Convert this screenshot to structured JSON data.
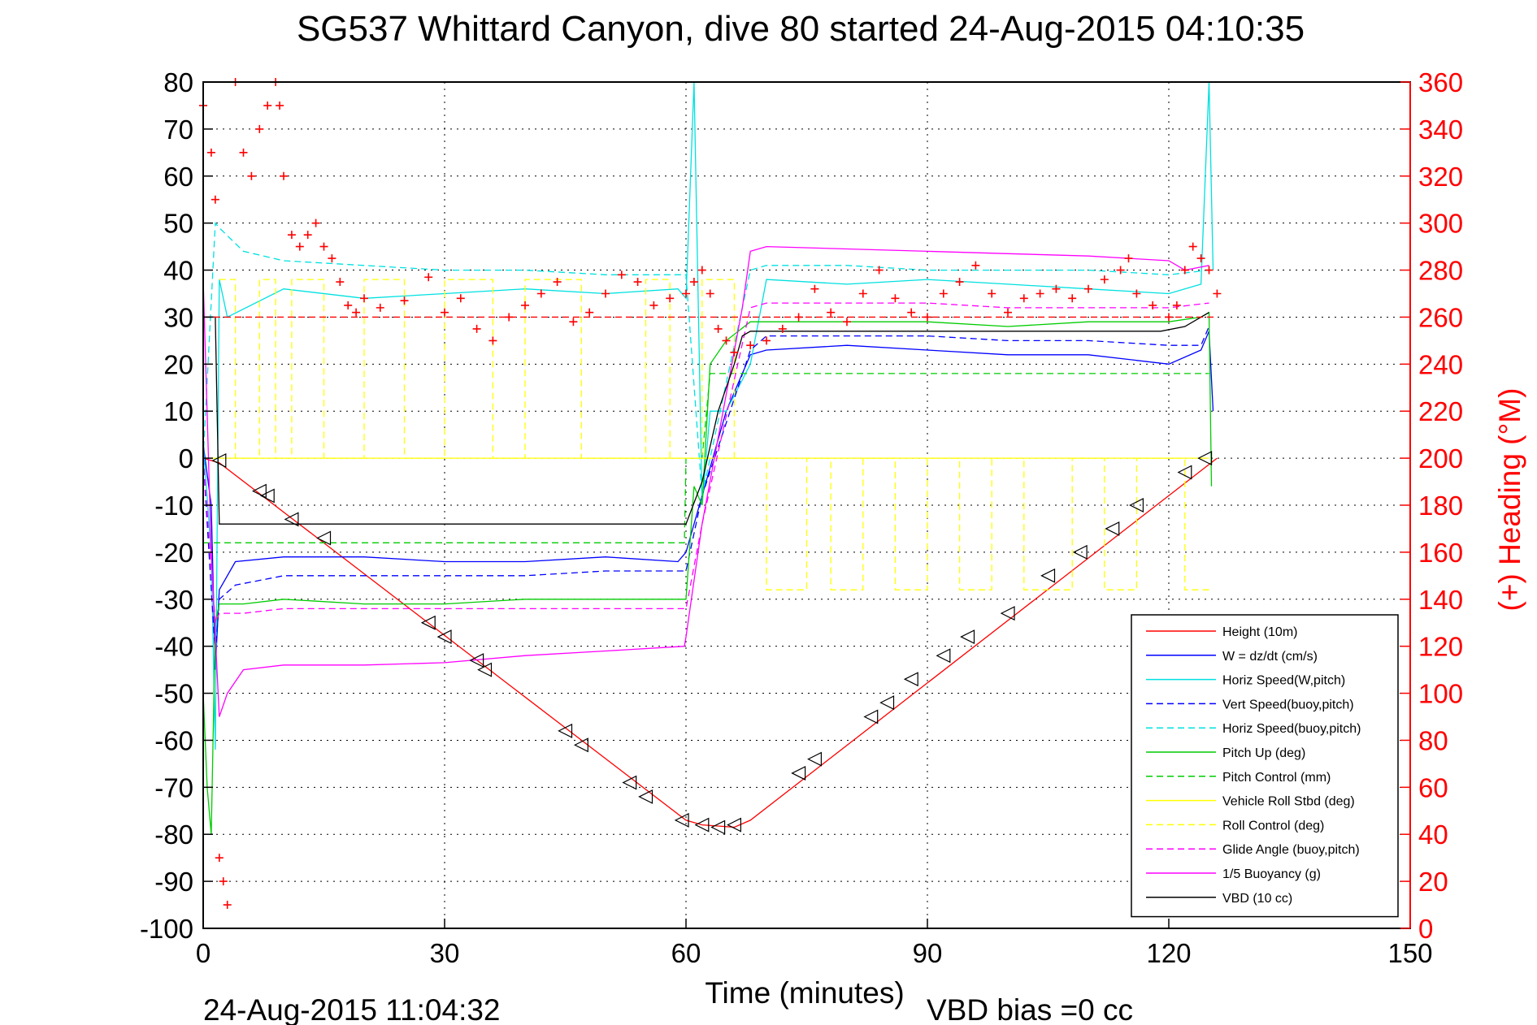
{
  "chart_data": {
    "type": "line",
    "title": "SG537 Whittard Canyon, dive 80 started 24-Aug-2015 04:10:35",
    "xlabel": "Time (minutes)",
    "ylabel": "",
    "y2label": "(+) Heading (°M)",
    "xlim": [
      0,
      150
    ],
    "ylim": [
      -100,
      80
    ],
    "y2lim": [
      0,
      360
    ],
    "xticks": [
      "0",
      "30",
      "60",
      "90",
      "120",
      "150"
    ],
    "yticks": [
      "80",
      "70",
      "60",
      "50",
      "40",
      "30",
      "20",
      "10",
      "0",
      "-10",
      "-20",
      "-30",
      "-40",
      "-50",
      "-60",
      "-70",
      "-80",
      "-90",
      "-100"
    ],
    "y2ticks": [
      "360",
      "340",
      "320",
      "300",
      "280",
      "260",
      "240",
      "220",
      "200",
      "180",
      "160",
      "140",
      "120",
      "100",
      "80",
      "60",
      "40",
      "20",
      "0"
    ],
    "grid": true,
    "legend_position": "bottom-right",
    "footer_left": "24-Aug-2015 11:04:32",
    "footer_right": "VBD bias =0 cc",
    "series": [
      {
        "name": "Height (10m)",
        "color": "#ff0000",
        "style": "solid",
        "x": [
          0,
          2,
          60,
          62,
          66,
          68,
          126
        ],
        "y": [
          0,
          -1,
          -77,
          -78,
          -78.5,
          -77,
          0
        ]
      },
      {
        "name": "W = dz/dt (cm/s)",
        "color": "#0000ff",
        "style": "solid",
        "x": [
          0,
          1,
          1.5,
          2,
          4,
          10,
          20,
          30,
          40,
          50,
          59,
          60,
          62,
          65,
          68,
          70,
          80,
          90,
          100,
          110,
          120,
          124,
          125,
          125.5
        ],
        "y": [
          3,
          -10,
          -45,
          -28,
          -22,
          -21,
          -21,
          -22,
          -22,
          -21,
          -22,
          -20,
          -8,
          10,
          22,
          23,
          24,
          23,
          22,
          22,
          20,
          23,
          27,
          10
        ]
      },
      {
        "name": "Horiz Speed(W,pitch)",
        "color": "#00e0e0",
        "style": "solid",
        "x": [
          0,
          1,
          1.5,
          2,
          3,
          10,
          20,
          30,
          40,
          50,
          59,
          60,
          61,
          62,
          63,
          65,
          68,
          70,
          80,
          90,
          100,
          110,
          120,
          124,
          125,
          125.5
        ],
        "y": [
          3,
          -20,
          -62,
          38,
          30,
          36,
          34,
          35,
          36,
          35,
          36,
          34,
          80,
          -10,
          10,
          10,
          20,
          38,
          37,
          38,
          37,
          36,
          35,
          37,
          80,
          40
        ]
      },
      {
        "name": "Vert Speed(buoy,pitch)",
        "color": "#0000ff",
        "style": "dashed",
        "x": [
          0,
          1.5,
          2,
          4,
          10,
          20,
          30,
          40,
          50,
          60,
          62,
          68,
          70,
          80,
          90,
          100,
          110,
          120,
          124,
          125
        ],
        "y": [
          0,
          -42,
          -30,
          -27,
          -25,
          -25,
          -25,
          -25,
          -24,
          -24,
          -8,
          23,
          26,
          26,
          26,
          25,
          25,
          24,
          24,
          28
        ]
      },
      {
        "name": "Horiz Speed(buoy,pitch)",
        "color": "#00e0e0",
        "style": "dashed",
        "x": [
          0,
          1.5,
          2,
          5,
          10,
          20,
          30,
          40,
          50,
          60,
          62,
          68,
          70,
          80,
          90,
          100,
          110,
          120,
          125
        ],
        "y": [
          0,
          50,
          49,
          44,
          42,
          41,
          40,
          40,
          39,
          39,
          -8,
          40,
          41,
          41,
          40,
          40,
          40,
          39,
          40
        ]
      },
      {
        "name": "Pitch Up (deg)",
        "color": "#00cc00",
        "style": "solid",
        "x": [
          0,
          0.5,
          1,
          1.5,
          2,
          5,
          10,
          20,
          30,
          40,
          50,
          60,
          61,
          62,
          63,
          65,
          68,
          70,
          80,
          90,
          100,
          110,
          120,
          124,
          125,
          125.3
        ],
        "y": [
          -50,
          -70,
          -80,
          -35,
          -31,
          -31,
          -30,
          -31,
          -31,
          -30,
          -30,
          -30,
          -6,
          -10,
          20,
          25,
          29,
          29,
          29,
          29,
          28,
          29,
          29,
          30,
          31,
          -6
        ]
      },
      {
        "name": "Pitch Control (mm)",
        "color": "#00cc00",
        "style": "dashed",
        "x": [
          0,
          2,
          59.8,
          60,
          62,
          63,
          125
        ],
        "y": [
          -18,
          -18,
          -18,
          0,
          0,
          18,
          18
        ]
      },
      {
        "name": "Vehicle Roll Stbd (deg)",
        "color": "#ffff00",
        "style": "solid",
        "x": [
          0,
          125
        ],
        "y": [
          0,
          0
        ]
      },
      {
        "name": "Roll Control (deg)",
        "color": "#ffff00",
        "style": "dashed",
        "x": [
          2,
          4,
          4,
          7,
          7,
          9,
          9,
          11,
          11,
          15,
          15,
          20,
          20,
          25,
          25,
          30,
          30,
          36,
          36,
          40,
          40,
          47,
          47,
          55,
          55,
          58,
          58,
          62,
          62,
          66,
          66,
          70,
          70,
          75,
          75,
          78,
          78,
          82,
          82,
          86,
          86,
          90,
          90,
          94,
          94,
          98,
          98,
          102,
          102,
          108,
          108,
          112,
          112,
          116,
          116,
          122,
          122,
          125
        ],
        "y": [
          38,
          38,
          0,
          0,
          38,
          38,
          0,
          0,
          38,
          38,
          0,
          0,
          38,
          38,
          0,
          0,
          38,
          38,
          0,
          0,
          38,
          38,
          0,
          0,
          38,
          38,
          0,
          0,
          38,
          38,
          0,
          0,
          -28,
          -28,
          0,
          0,
          -28,
          -28,
          0,
          0,
          -28,
          -28,
          0,
          0,
          -28,
          -28,
          0,
          0,
          -28,
          -28,
          0,
          0,
          -28,
          -28,
          0,
          0,
          -28,
          -28
        ]
      },
      {
        "name": "Glide Angle (buoy,pitch)",
        "color": "#ff00ff",
        "style": "dashed",
        "x": [
          0,
          1.5,
          2,
          5,
          10,
          20,
          30,
          40,
          50,
          60,
          62,
          68,
          70,
          80,
          90,
          100,
          110,
          120,
          125
        ],
        "y": [
          0,
          -35,
          -33,
          -33,
          -32,
          -32,
          -32,
          -32,
          -32,
          -32,
          -14,
          32,
          33,
          33,
          33,
          32,
          32,
          32,
          33
        ]
      },
      {
        "name": "1/5 Buoyancy (g)",
        "color": "#ff00ff",
        "style": "solid",
        "x": [
          0,
          1,
          2,
          3,
          5,
          10,
          20,
          30,
          40,
          50,
          59.8,
          60,
          62,
          67,
          68,
          70,
          80,
          90,
          100,
          110,
          120,
          122,
          125
        ],
        "y": [
          38,
          -20,
          -55,
          -50,
          -45,
          -44,
          -44,
          -43.5,
          -42,
          -41,
          -40,
          -38,
          -14,
          32,
          44,
          45,
          44.5,
          44,
          43.5,
          43,
          42,
          40,
          41
        ]
      },
      {
        "name": "VBD (10 cc)",
        "color": "#000000",
        "style": "solid",
        "x": [
          0,
          1.5,
          2,
          59.8,
          60,
          62,
          64,
          66,
          67,
          68,
          69,
          119,
          122,
          124,
          125
        ],
        "y": [
          30,
          30,
          -14,
          -14,
          -14,
          -5,
          10,
          20,
          26,
          27,
          27,
          27,
          28,
          30,
          31
        ]
      }
    ],
    "heading_series": {
      "name": "(+) Heading",
      "color": "#ff0000",
      "marker": "+",
      "target_heading": 260,
      "x": [
        0,
        1,
        1.5,
        2,
        2.5,
        3,
        4,
        5,
        6,
        7,
        8,
        9,
        9.5,
        10,
        11,
        12,
        13,
        14,
        15,
        16,
        17,
        18,
        19,
        20,
        22,
        25,
        28,
        30,
        32,
        34,
        36,
        38,
        40,
        42,
        44,
        46,
        48,
        50,
        52,
        54,
        56,
        58,
        60,
        61,
        62,
        63,
        64,
        65,
        66,
        68,
        70,
        72,
        74,
        76,
        78,
        80,
        82,
        84,
        86,
        88,
        90,
        92,
        94,
        96,
        98,
        100,
        102,
        104,
        106,
        108,
        110,
        112,
        114,
        115,
        116,
        118,
        120,
        121,
        122,
        123,
        124,
        125,
        126
      ],
      "y": [
        350,
        330,
        310,
        30,
        20,
        10,
        360,
        330,
        320,
        340,
        350,
        360,
        350,
        320,
        295,
        290,
        295,
        300,
        290,
        285,
        275,
        265,
        262,
        268,
        264,
        267,
        277,
        262,
        268,
        255,
        250,
        260,
        265,
        270,
        275,
        258,
        262,
        270,
        278,
        275,
        265,
        268,
        270,
        275,
        280,
        270,
        255,
        250,
        245,
        248,
        250,
        255,
        260,
        272,
        262,
        258,
        270,
        280,
        268,
        262,
        260,
        270,
        275,
        282,
        270,
        262,
        268,
        270,
        272,
        268,
        272,
        276,
        280,
        285,
        270,
        265,
        260,
        265,
        280,
        290,
        285,
        280,
        270
      ]
    },
    "dive_markers": {
      "shape": "triangle",
      "x": [
        2,
        7,
        8,
        11,
        15,
        28,
        30,
        34,
        35,
        45,
        47,
        53,
        55,
        59.5,
        62,
        64,
        66,
        74,
        76,
        83,
        85,
        88,
        92,
        95,
        100,
        105,
        109,
        113,
        116,
        122,
        124.5
      ],
      "y": [
        -0.5,
        -7,
        -8,
        -13,
        -17,
        -35,
        -38,
        -43,
        -45,
        -58,
        -61,
        -69,
        -72,
        -77,
        -78,
        -78.5,
        -78,
        -67,
        -64,
        -55,
        -52,
        -47,
        -42,
        -38,
        -33,
        -25,
        -20,
        -15,
        -10,
        -3,
        0
      ]
    }
  }
}
